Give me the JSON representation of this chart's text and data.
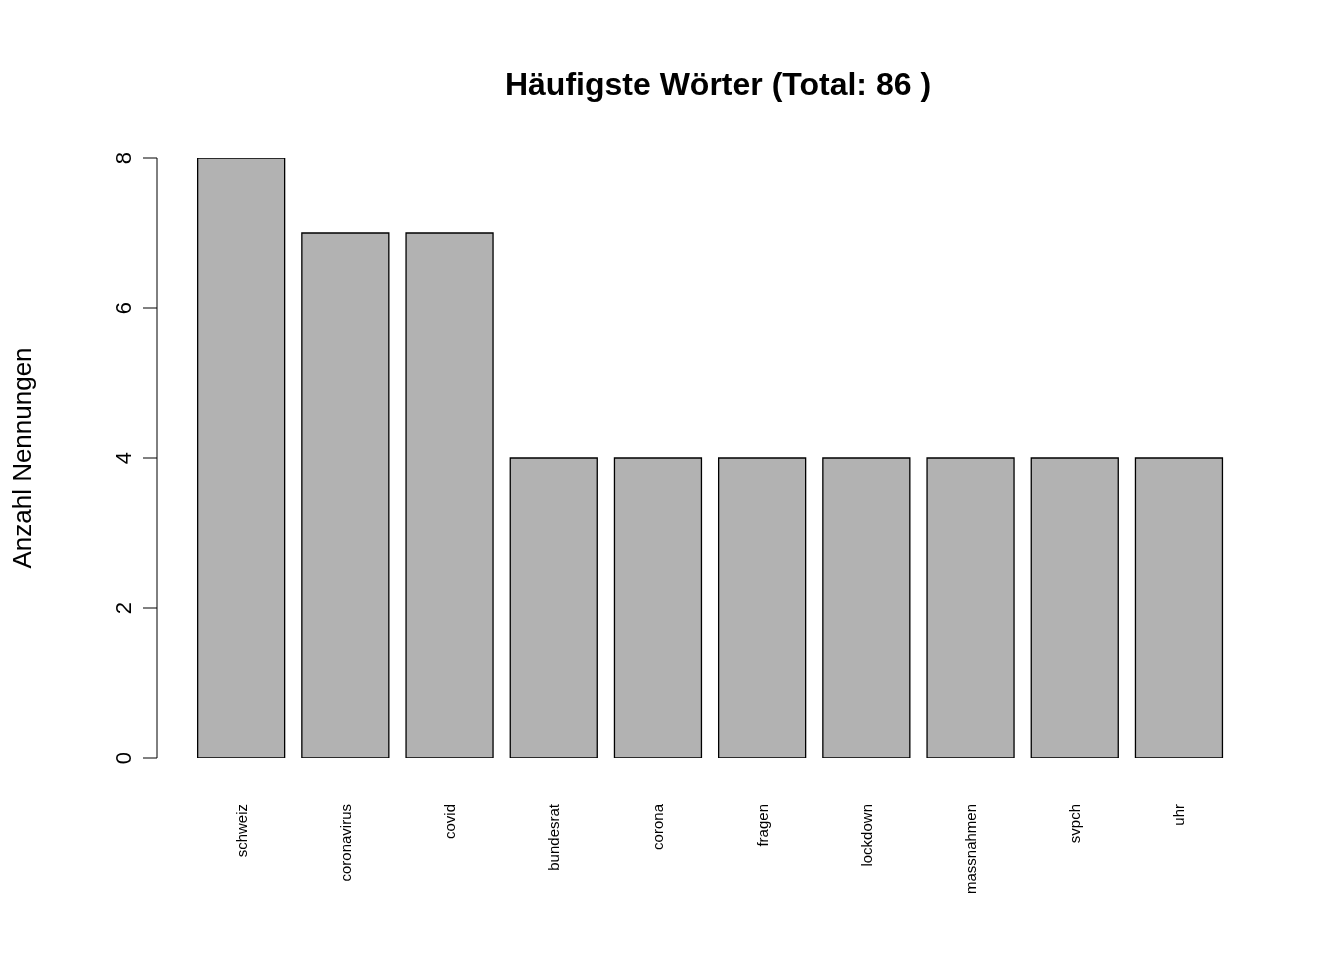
{
  "chart_data": {
    "type": "bar",
    "title": "Häufigste Wörter (Total:  86 )",
    "ylabel": "Anzahl Nennungen",
    "categories": [
      "schweiz",
      "coronavirus",
      "covid",
      "bundesrat",
      "corona",
      "fragen",
      "lockdown",
      "massnahmen",
      "svpch",
      "uhr"
    ],
    "values": [
      8,
      7,
      7,
      4,
      4,
      4,
      4,
      4,
      4,
      4
    ],
    "color": "#b2b2b2",
    "ylim": [
      0,
      8
    ],
    "yticks": [
      0,
      2,
      4,
      6,
      8
    ]
  }
}
